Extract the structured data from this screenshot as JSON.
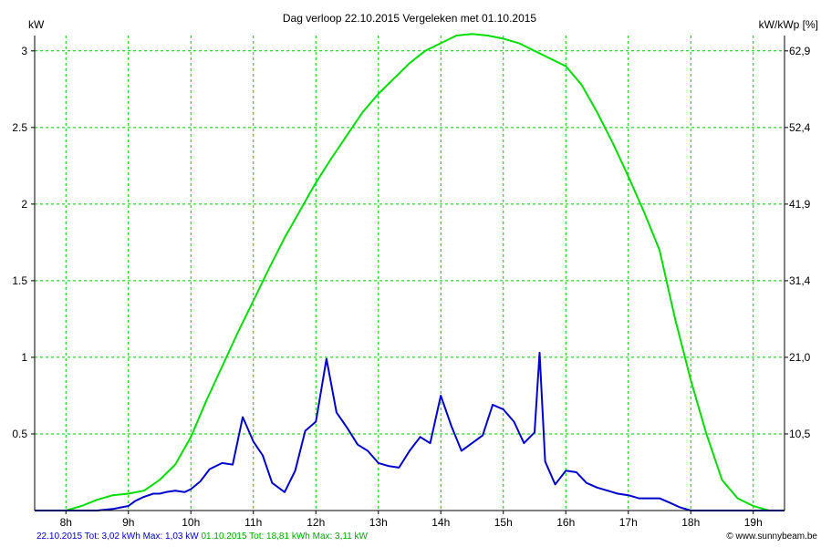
{
  "chart_data": {
    "type": "line",
    "title": "Dag  verloop 22.10.2015   Vergeleken met 01.10.2015",
    "ylabel_left": "kW",
    "ylabel_right": "kW/kWp [%]",
    "xlim": [
      7.5,
      19.5
    ],
    "ylim": [
      0,
      3.1
    ],
    "grid": true,
    "x_ticks": [
      8,
      9,
      10,
      11,
      12,
      13,
      14,
      15,
      16,
      17,
      18,
      19
    ],
    "x_tick_labels": [
      "8h",
      "9h",
      "10h",
      "11h",
      "12h",
      "13h",
      "14h",
      "15h",
      "16h",
      "17h",
      "18h",
      "19h"
    ],
    "y_ticks": [
      0.5,
      1,
      1.5,
      2,
      2.5,
      3
    ],
    "y_tick_labels": [
      "0.5",
      "1",
      "1.5",
      "2",
      "2.5",
      "3"
    ],
    "y_right_tick_labels": [
      "10,5",
      "21,0",
      "31,4",
      "41,9",
      "52,4",
      "62,9"
    ],
    "series": [
      {
        "name": "01.10.2015",
        "color": "#00dd00",
        "x": [
          7.5,
          8.0,
          8.25,
          8.5,
          8.75,
          9.0,
          9.25,
          9.5,
          9.75,
          10.0,
          10.25,
          10.5,
          10.75,
          11.0,
          11.25,
          11.5,
          11.75,
          12.0,
          12.25,
          12.5,
          12.75,
          13.0,
          13.25,
          13.5,
          13.75,
          14.0,
          14.25,
          14.5,
          14.75,
          15.0,
          15.25,
          15.5,
          15.75,
          16.0,
          16.25,
          16.5,
          16.75,
          17.0,
          17.25,
          17.5,
          17.75,
          18.0,
          18.25,
          18.5,
          18.75,
          19.0,
          19.25,
          19.5
        ],
        "values": [
          0,
          0,
          0.03,
          0.07,
          0.1,
          0.11,
          0.13,
          0.2,
          0.3,
          0.48,
          0.72,
          0.94,
          1.16,
          1.37,
          1.58,
          1.78,
          1.96,
          2.14,
          2.3,
          2.45,
          2.6,
          2.72,
          2.82,
          2.92,
          3.0,
          3.05,
          3.1,
          3.11,
          3.1,
          3.08,
          3.05,
          3.0,
          2.95,
          2.9,
          2.78,
          2.6,
          2.4,
          2.18,
          1.95,
          1.7,
          1.25,
          0.85,
          0.5,
          0.2,
          0.08,
          0.03,
          0,
          0
        ]
      },
      {
        "name": "22.10.2015",
        "color": "#0000cc",
        "x": [
          7.5,
          8.5,
          8.75,
          9.0,
          9.1,
          9.25,
          9.4,
          9.5,
          9.6,
          9.75,
          9.9,
          10.0,
          10.15,
          10.3,
          10.5,
          10.67,
          10.83,
          11.0,
          11.15,
          11.3,
          11.5,
          11.67,
          11.83,
          12.0,
          12.17,
          12.33,
          12.5,
          12.67,
          12.83,
          13.0,
          13.17,
          13.33,
          13.5,
          13.67,
          13.83,
          14.0,
          14.17,
          14.33,
          14.5,
          14.67,
          14.83,
          15.0,
          15.17,
          15.33,
          15.5,
          15.58,
          15.67,
          15.83,
          16.0,
          16.17,
          16.33,
          16.5,
          16.67,
          16.83,
          17.0,
          17.17,
          17.33,
          17.5,
          17.67,
          17.83,
          18.0,
          18.5,
          19.0,
          19.5
        ],
        "values": [
          0,
          0,
          0.01,
          0.03,
          0.06,
          0.09,
          0.11,
          0.11,
          0.12,
          0.13,
          0.12,
          0.14,
          0.19,
          0.27,
          0.31,
          0.3,
          0.61,
          0.45,
          0.36,
          0.18,
          0.12,
          0.26,
          0.52,
          0.58,
          0.99,
          0.64,
          0.54,
          0.43,
          0.39,
          0.31,
          0.29,
          0.28,
          0.39,
          0.48,
          0.44,
          0.75,
          0.55,
          0.39,
          0.44,
          0.49,
          0.69,
          0.66,
          0.58,
          0.44,
          0.51,
          1.03,
          0.32,
          0.17,
          0.26,
          0.25,
          0.18,
          0.15,
          0.13,
          0.11,
          0.1,
          0.08,
          0.08,
          0.08,
          0.05,
          0.02,
          0,
          0,
          0,
          0
        ]
      }
    ]
  },
  "footer": {
    "blue_text": "22.10.2015 Tot: 3,02 kWh Max: 1,03 kW",
    "green_text": "01.10.2015 Tot: 18,81 kWh Max: 3,11 kW",
    "credit": "© www.sunnybeam.be"
  }
}
